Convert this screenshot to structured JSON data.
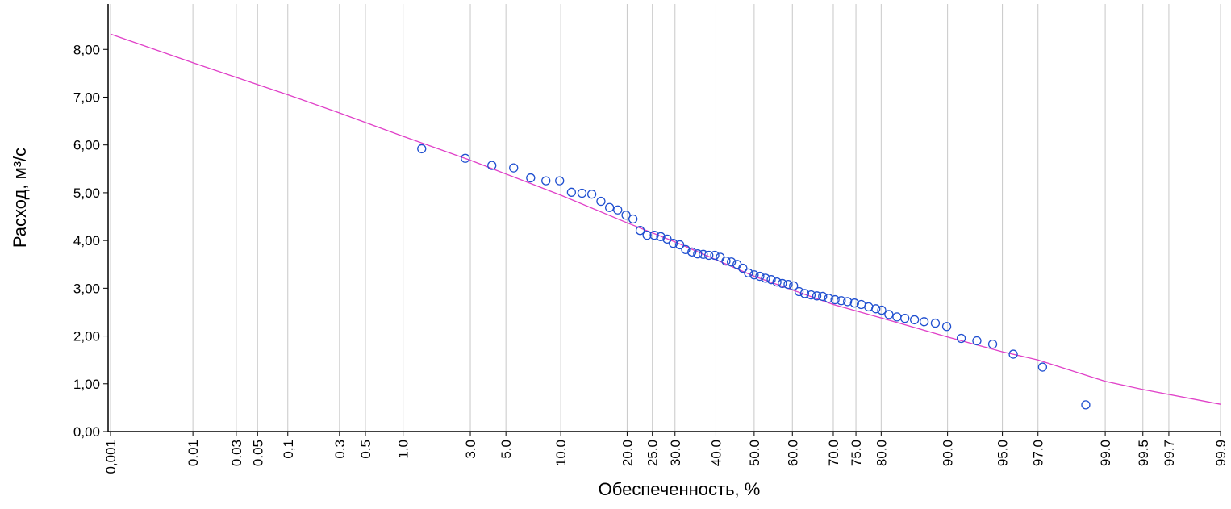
{
  "chart_data": {
    "type": "scatter",
    "xscale": "probability",
    "xlabel": "Обеспеченность, %",
    "ylabel": "Расход, м³/с",
    "xlim": [
      0.001,
      99.9
    ],
    "ylim": [
      0,
      8.95
    ],
    "xticks": [
      {
        "value": 0.001,
        "label": "0,001"
      },
      0.01,
      0.03,
      0.05,
      {
        "value": 0.1,
        "label": "0,1"
      },
      0.3,
      0.5,
      {
        "value": 1,
        "label": "1.0"
      },
      {
        "value": 3,
        "label": "3.0"
      },
      {
        "value": 5,
        "label": "5.0"
      },
      {
        "value": 10,
        "label": "10.0"
      },
      {
        "value": 20,
        "label": "20.0"
      },
      {
        "value": 25,
        "label": "25.0"
      },
      {
        "value": 30,
        "label": "30.0"
      },
      {
        "value": 40,
        "label": "40.0"
      },
      {
        "value": 50,
        "label": "50.0"
      },
      {
        "value": 60,
        "label": "60.0"
      },
      {
        "value": 70,
        "label": "70.0"
      },
      {
        "value": 75,
        "label": "75.0"
      },
      {
        "value": 80,
        "label": "80.0"
      },
      {
        "value": 90,
        "label": "90.0"
      },
      {
        "value": 95,
        "label": "95.0"
      },
      {
        "value": 97,
        "label": "97.0"
      },
      {
        "value": 99,
        "label": "99.0"
      },
      99.5,
      99.7,
      99.9
    ],
    "yticks": [
      {
        "value": 0,
        "label": "0,00"
      },
      {
        "value": 1,
        "label": "1,00"
      },
      {
        "value": 2,
        "label": "2,00"
      },
      {
        "value": 3,
        "label": "3,00"
      },
      {
        "value": 4,
        "label": "4,00"
      },
      {
        "value": 5,
        "label": "5,00"
      },
      {
        "value": 6,
        "label": "6,00"
      },
      {
        "value": 7,
        "label": "7,00"
      },
      {
        "value": 8,
        "label": "8,00"
      }
    ],
    "grid": "x",
    "series": [
      {
        "style": "line",
        "color": "#e040c8",
        "x": [
          0.001,
          0.01,
          0.1,
          0.3,
          1,
          3,
          10,
          20,
          30,
          50,
          70,
          80,
          90,
          95,
          97,
          99,
          99.5,
          99.9
        ],
        "values": [
          8.32,
          7.72,
          7.05,
          6.67,
          6.18,
          5.68,
          4.95,
          4.37,
          3.97,
          3.25,
          2.66,
          2.38,
          1.98,
          1.67,
          1.5,
          1.05,
          0.88,
          0.57
        ]
      },
      {
        "style": "points",
        "color": "#1f4fd0",
        "x": [
          1.38,
          2.78,
          4.11,
          5.55,
          6.93,
          8.38,
          9.87,
          11.3,
          12.7,
          14.1,
          15.5,
          16.9,
          18.3,
          19.8,
          21.1,
          22.5,
          23.9,
          25.4,
          26.8,
          28.2,
          29.6,
          31.1,
          32.5,
          34.0,
          35.4,
          36.8,
          38.2,
          39.7,
          41.1,
          42.6,
          44.0,
          45.5,
          47.0,
          48.5,
          50.0,
          51.5,
          53.0,
          54.5,
          56.0,
          57.4,
          58.9,
          60.3,
          61.7,
          63.1,
          64.7,
          66.1,
          67.5,
          68.9,
          70.4,
          71.8,
          73.2,
          74.7,
          76.1,
          77.6,
          79.0,
          80.1,
          81.4,
          82.8,
          84.1,
          85.6,
          87.0,
          88.5,
          89.9,
          91.5,
          93.0,
          94.3,
          95.7,
          97.2,
          98.6
        ],
        "values": [
          5.92,
          5.72,
          5.57,
          5.52,
          5.31,
          5.25,
          5.25,
          5.01,
          4.99,
          4.97,
          4.82,
          4.69,
          4.64,
          4.53,
          4.45,
          4.21,
          4.11,
          4.11,
          4.08,
          4.03,
          3.94,
          3.91,
          3.81,
          3.76,
          3.72,
          3.71,
          3.69,
          3.69,
          3.65,
          3.57,
          3.55,
          3.5,
          3.42,
          3.32,
          3.28,
          3.25,
          3.21,
          3.18,
          3.13,
          3.1,
          3.08,
          3.05,
          2.93,
          2.89,
          2.86,
          2.84,
          2.83,
          2.79,
          2.76,
          2.74,
          2.72,
          2.69,
          2.66,
          2.61,
          2.57,
          2.54,
          2.45,
          2.4,
          2.37,
          2.34,
          2.3,
          2.27,
          2.2,
          1.95,
          1.9,
          1.83,
          1.62,
          1.35,
          0.56
        ]
      }
    ]
  }
}
